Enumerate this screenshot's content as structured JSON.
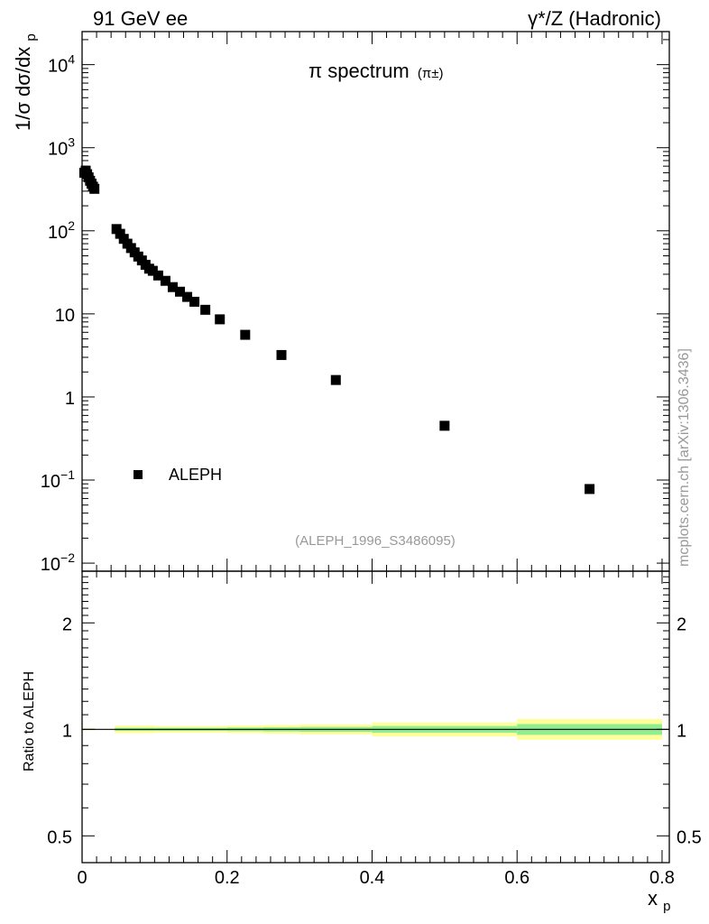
{
  "header": {
    "left": "91 GeV ee",
    "right": "γ*/Z (Hadronic)"
  },
  "watermark": "mcplots.cern.ch [arXiv:1306.3436]",
  "analysis_tag": "(ALEPH_1996_S3486095)",
  "plot_title_main": "π spectrum",
  "plot_title_sub": "(π±)",
  "ylabel_main": "1/σ dσ/dx",
  "ylabel_main_sub": "p",
  "ylabel_ratio": "Ratio to ALEPH",
  "xlabel_main": "x",
  "xlabel_sub": "p",
  "colors": {
    "marker": "#000000",
    "band_outer": "#ffff99",
    "band_inner": "#90ee90",
    "ratio_line": "#000000"
  },
  "chart_data": [
    {
      "type": "scatter",
      "panel": "main",
      "yscale": "log",
      "xlim": [
        0,
        0.81
      ],
      "ylim": [
        0.008,
        25000
      ],
      "x_ticks": [
        0,
        0.2,
        0.4,
        0.6,
        0.8
      ],
      "x_tick_labels": [
        "0",
        "0.2",
        "0.4",
        "0.6",
        "0.8"
      ],
      "y_ticks": [
        0.01,
        0.1,
        1,
        10,
        100,
        1000,
        10000
      ],
      "y_tick_labels": [
        {
          "base": "10",
          "exp": "−2"
        },
        {
          "base": "10",
          "exp": "−1"
        },
        {
          "base": "1",
          "exp": ""
        },
        {
          "base": "10",
          "exp": ""
        },
        {
          "base": "10",
          "exp": "2"
        },
        {
          "base": "10",
          "exp": "3"
        },
        {
          "base": "10",
          "exp": "4"
        }
      ],
      "legend": {
        "entries": [
          "ALEPH"
        ],
        "placement": "bottom-left"
      },
      "series": [
        {
          "name": "ALEPH",
          "marker": "square",
          "x": [
            0.003,
            0.005,
            0.007,
            0.009,
            0.011,
            0.013,
            0.015,
            0.017,
            0.0475,
            0.0525,
            0.0575,
            0.0625,
            0.0675,
            0.0725,
            0.0775,
            0.0825,
            0.0875,
            0.0925,
            0.0975,
            0.105,
            0.115,
            0.125,
            0.135,
            0.145,
            0.155,
            0.17,
            0.19,
            0.225,
            0.275,
            0.35,
            0.5,
            0.7
          ],
          "y": [
            500,
            530,
            480,
            440,
            400,
            370,
            340,
            320,
            105,
            92,
            80,
            70,
            62,
            55,
            49,
            44,
            39,
            35,
            33,
            29,
            25,
            21,
            18.5,
            16,
            14,
            11.2,
            8.6,
            5.6,
            3.2,
            1.6,
            0.45,
            0.078
          ]
        }
      ]
    },
    {
      "type": "area",
      "panel": "ratio",
      "yscale": "log",
      "xlim": [
        0,
        0.81
      ],
      "ylim": [
        0.42,
        2.8
      ],
      "y_ticks": [
        0.5,
        1,
        2
      ],
      "y_tick_labels": [
        "0.5",
        "1",
        "2"
      ],
      "x_ticks": [
        0,
        0.2,
        0.4,
        0.6,
        0.8
      ],
      "x_tick_labels": [
        "0",
        "0.2",
        "0.4",
        "0.6",
        "0.8"
      ],
      "reference_line": 1,
      "bands": {
        "bins": [
          [
            0.0,
            0.02
          ],
          [
            0.045,
            0.1
          ],
          [
            0.1,
            0.2
          ],
          [
            0.2,
            0.25
          ],
          [
            0.25,
            0.3
          ],
          [
            0.3,
            0.4
          ],
          [
            0.4,
            0.6
          ],
          [
            0.6,
            0.8
          ]
        ],
        "outer_lo": [
          0.995,
          0.975,
          0.978,
          0.975,
          0.972,
          0.968,
          0.955,
          0.935
        ],
        "outer_hi": [
          1.005,
          1.025,
          1.022,
          1.025,
          1.028,
          1.032,
          1.045,
          1.07
        ],
        "inner_lo": [
          0.998,
          0.99,
          0.99,
          0.988,
          0.986,
          0.984,
          0.978,
          0.965
        ],
        "inner_hi": [
          1.002,
          1.01,
          1.01,
          1.012,
          1.014,
          1.016,
          1.022,
          1.035
        ]
      }
    }
  ]
}
